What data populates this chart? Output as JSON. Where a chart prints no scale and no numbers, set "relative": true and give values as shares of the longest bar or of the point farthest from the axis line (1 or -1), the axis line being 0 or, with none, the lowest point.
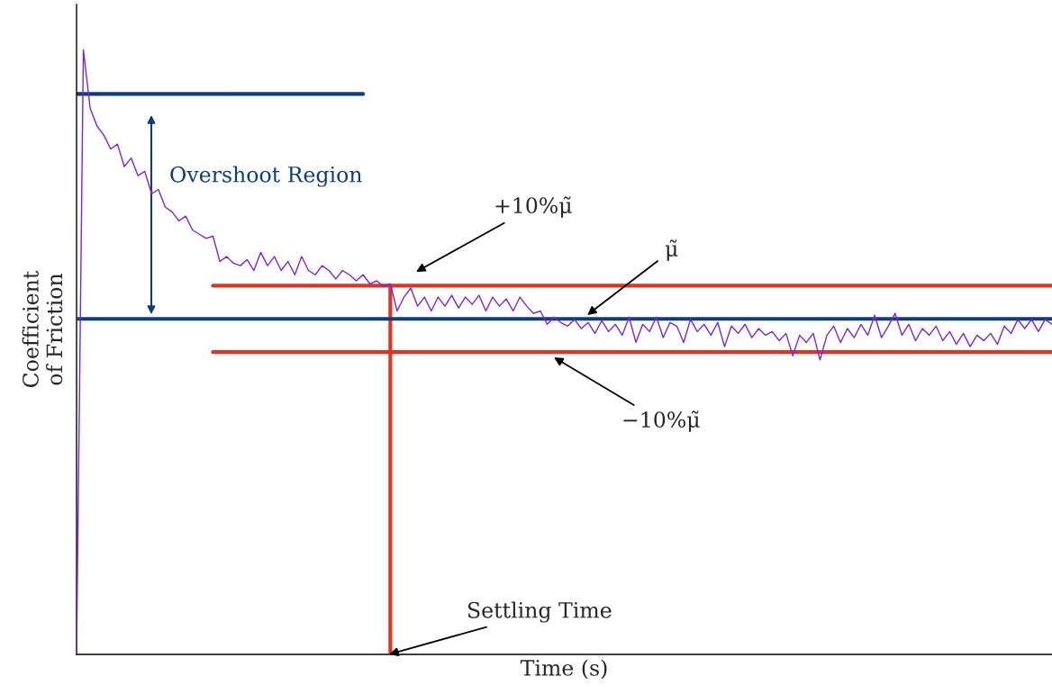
{
  "chart_data": {
    "type": "line",
    "relative": true,
    "xlabel": "Time (s)",
    "ylabel": "Coefficient\nof Friction",
    "categories": [
      null,
      null,
      null,
      null,
      null,
      null,
      null,
      null,
      null,
      null,
      null,
      null,
      null,
      null,
      null,
      null,
      null,
      null,
      null,
      null,
      null,
      null,
      null,
      null,
      null,
      null,
      null,
      null,
      null,
      null,
      null,
      null,
      null,
      null,
      null,
      null,
      null,
      null,
      null,
      null,
      null,
      null,
      null,
      null,
      null,
      null,
      null,
      null,
      null,
      null,
      null,
      null,
      null,
      null,
      null,
      null,
      null,
      null,
      null,
      null,
      null,
      null,
      null,
      null,
      null,
      null,
      null,
      null,
      null,
      null,
      null,
      null,
      null,
      null,
      null,
      null,
      null,
      null,
      null,
      null,
      null,
      null,
      null,
      null,
      null,
      null,
      null,
      null,
      null,
      null,
      null,
      null,
      null,
      null,
      null,
      null,
      null,
      null,
      null,
      null,
      null,
      null,
      null,
      null,
      null,
      null,
      null,
      null,
      null,
      null,
      null,
      null,
      null,
      null,
      null,
      null,
      null,
      null,
      null,
      null,
      null,
      null,
      null,
      null,
      null,
      null,
      null,
      null,
      null,
      null,
      null,
      null,
      null,
      null,
      null,
      null,
      null,
      null,
      null,
      null,
      null,
      null,
      null,
      null
    ],
    "series": [
      {
        "color": "#7b22e0",
        "values": [
          0,
          1,
          0.903,
          0.874,
          0.859,
          0.836,
          0.844,
          0.807,
          0.821,
          0.792,
          0.799,
          0.762,
          0.769,
          0.74,
          0.732,
          0.717,
          0.725,
          0.702,
          0.695,
          0.688,
          0.692,
          0.65,
          0.658,
          0.647,
          0.643,
          0.653,
          0.635,
          0.665,
          0.643,
          0.658,
          0.635,
          0.65,
          0.628,
          0.658,
          0.635,
          0.628,
          0.643,
          0.635,
          0.621,
          0.635,
          0.628,
          0.618,
          0.628,
          0.613,
          0.618,
          0.609,
          0.613,
          0.568,
          0.591,
          0.606,
          0.576,
          0.591,
          0.568,
          0.591,
          0.576,
          0.594,
          0.573,
          0.591,
          0.579,
          0.594,
          0.568,
          0.591,
          0.576,
          0.588,
          0.568,
          0.591,
          0.576,
          0.564,
          0.568,
          0.546,
          0.558,
          0.549,
          0.543,
          0.554,
          0.539,
          0.549,
          0.531,
          0.552,
          0.534,
          0.546,
          0.528,
          0.558,
          0.516,
          0.546,
          0.534,
          0.558,
          0.524,
          0.549,
          0.543,
          0.516,
          0.554,
          0.534,
          0.546,
          0.528,
          0.549,
          0.509,
          0.543,
          0.531,
          0.546,
          0.524,
          0.539,
          0.528,
          0.534,
          0.519,
          0.531,
          0.494,
          0.528,
          0.516,
          0.531,
          0.487,
          0.528,
          0.543,
          0.516,
          0.539,
          0.524,
          0.546,
          0.528,
          0.561,
          0.524,
          0.543,
          0.564,
          0.528,
          0.546,
          0.519,
          0.539,
          0.528,
          0.543,
          0.519,
          0.534,
          0.513,
          0.531,
          0.509,
          0.528,
          0.519,
          0.531,
          0.513,
          0.543,
          0.531,
          0.554,
          0.539,
          0.554,
          0.534,
          0.554,
          0.546
        ]
      },
      {
        "color": "#0d3d7d",
        "values": [
          0.927,
          0.927,
          0.927,
          0.927,
          0.927,
          0.927,
          0.927,
          0.927,
          0.927,
          0.927,
          0.927,
          0.927,
          0.927,
          0.927,
          0.927,
          0.927,
          0.927,
          0.927,
          0.927,
          0.927,
          0.927,
          0.927,
          0.927,
          0.927,
          0.927,
          0.927,
          0.927,
          0.927,
          0.927,
          0.927,
          0.927,
          0.927,
          0.927,
          0.927,
          0.927,
          0.927,
          0.927,
          0.927,
          0.927,
          0.927,
          0.927,
          0.927,
          0.927,
          null,
          null,
          null,
          null,
          null,
          null,
          null,
          null,
          null,
          null,
          null,
          null,
          null,
          null,
          null,
          null,
          null,
          null,
          null,
          null,
          null,
          null,
          null,
          null,
          null,
          null,
          null,
          null,
          null,
          null,
          null,
          null,
          null,
          null,
          null,
          null,
          null,
          null,
          null,
          null,
          null,
          null,
          null,
          null,
          null,
          null,
          null,
          null,
          null,
          null,
          null,
          null,
          null,
          null,
          null,
          null,
          null,
          null,
          null,
          null,
          null,
          null,
          null,
          null,
          null,
          null,
          null,
          null,
          null,
          null,
          null,
          null,
          null,
          null,
          null,
          null,
          null,
          null,
          null,
          null,
          null,
          null,
          null,
          null,
          null,
          null,
          null,
          null,
          null,
          null,
          null,
          null,
          null,
          null,
          null,
          null,
          null,
          null,
          null,
          null,
          null
        ]
      },
      {
        "color": "#e5321e",
        "values": [
          null,
          null,
          null,
          null,
          null,
          null,
          null,
          null,
          null,
          null,
          null,
          null,
          null,
          null,
          null,
          null,
          null,
          null,
          null,
          null,
          0.61,
          0.61,
          0.61,
          0.61,
          0.61,
          0.61,
          0.61,
          0.61,
          0.61,
          0.61,
          0.61,
          0.61,
          0.61,
          0.61,
          0.61,
          0.61,
          0.61,
          0.61,
          0.61,
          0.61,
          0.61,
          0.61,
          0.61,
          0.61,
          0.61,
          0.61,
          0.61,
          0.61,
          0.61,
          0.61,
          0.61,
          0.61,
          0.61,
          0.61,
          0.61,
          0.61,
          0.61,
          0.61,
          0.61,
          0.61,
          0.61,
          0.61,
          0.61,
          0.61,
          0.61,
          0.61,
          0.61,
          0.61,
          0.61,
          0.61,
          0.61,
          0.61,
          0.61,
          0.61,
          0.61,
          0.61,
          0.61,
          0.61,
          0.61,
          0.61,
          0.61,
          0.61,
          0.61,
          0.61,
          0.61,
          0.61,
          0.61,
          0.61,
          0.61,
          0.61,
          0.61,
          0.61,
          0.61,
          0.61,
          0.61,
          0.61,
          0.61,
          0.61,
          0.61,
          0.61,
          0.61,
          0.61,
          0.61,
          0.61,
          0.61,
          0.61,
          0.61,
          0.61,
          0.61,
          0.61,
          0.61,
          0.61,
          0.61,
          0.61,
          0.61,
          0.61,
          0.61,
          0.61,
          0.61,
          0.61,
          0.61,
          0.61,
          0.61,
          0.61,
          0.61,
          0.61,
          0.61,
          0.61,
          0.61,
          0.61,
          0.61,
          0.61,
          0.61,
          0.61,
          0.61,
          0.61,
          0.61,
          0.61,
          0.61,
          0.61,
          0.61,
          0.61,
          0.61,
          0.61
        ]
      },
      {
        "color": "#e5321e",
        "values": [
          null,
          null,
          null,
          null,
          null,
          null,
          null,
          null,
          null,
          null,
          null,
          null,
          null,
          null,
          null,
          null,
          null,
          null,
          null,
          null,
          0.5,
          0.5,
          0.5,
          0.5,
          0.5,
          0.5,
          0.5,
          0.5,
          0.5,
          0.5,
          0.5,
          0.5,
          0.5,
          0.5,
          0.5,
          0.5,
          0.5,
          0.5,
          0.5,
          0.5,
          0.5,
          0.5,
          0.5,
          0.5,
          0.5,
          0.5,
          0.5,
          0.5,
          0.5,
          0.5,
          0.5,
          0.5,
          0.5,
          0.5,
          0.5,
          0.5,
          0.5,
          0.5,
          0.5,
          0.5,
          0.5,
          0.5,
          0.5,
          0.5,
          0.5,
          0.5,
          0.5,
          0.5,
          0.5,
          0.5,
          0.5,
          0.5,
          0.5,
          0.5,
          0.5,
          0.5,
          0.5,
          0.5,
          0.5,
          0.5,
          0.5,
          0.5,
          0.5,
          0.5,
          0.5,
          0.5,
          0.5,
          0.5,
          0.5,
          0.5,
          0.5,
          0.5,
          0.5,
          0.5,
          0.5,
          0.5,
          0.5,
          0.5,
          0.5,
          0.5,
          0.5,
          0.5,
          0.5,
          0.5,
          0.5,
          0.5,
          0.5,
          0.5,
          0.5,
          0.5,
          0.5,
          0.5,
          0.5,
          0.5,
          0.5,
          0.5,
          0.5,
          0.5,
          0.5,
          0.5,
          0.5,
          0.5,
          0.5,
          0.5,
          0.5,
          0.5,
          0.5,
          0.5,
          0.5,
          0.5,
          0.5,
          0.5,
          0.5,
          0.5,
          0.5,
          0.5,
          0.5,
          0.5,
          0.5,
          0.5,
          0.5,
          0.5,
          0.5,
          0.5
        ]
      }
    ],
    "ref_lines": [
      {
        "axis": "y",
        "value": 0.555,
        "color": "#0d3d7d"
      }
    ],
    "annotations": [
      "Overshoot Region",
      "+10%μ̃",
      "μ̃",
      "−10%μ̃",
      "Settling Time"
    ],
    "marker": "none",
    "line_style": "solid"
  }
}
